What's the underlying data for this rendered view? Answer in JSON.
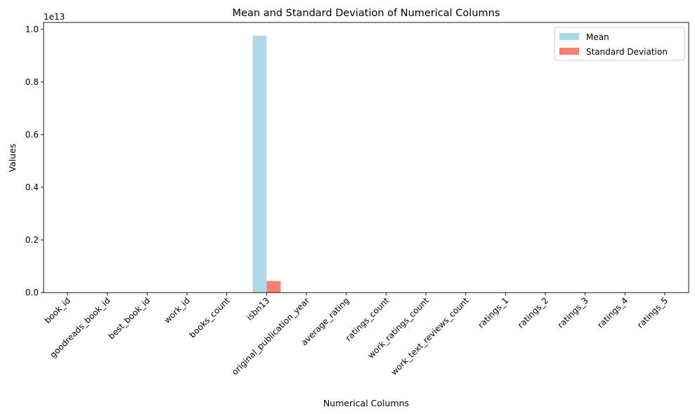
{
  "chart_data": {
    "type": "bar",
    "title": "Mean and Standard Deviation of Numerical Columns",
    "xlabel": "Numerical Columns",
    "ylabel": "Values",
    "y_offset_label": "1e13",
    "ylim": [
      0,
      10260000000000.0
    ],
    "yticks": [
      0,
      2000000000000.0,
      4000000000000.0,
      6000000000000.0,
      8000000000000.0,
      10000000000000.0
    ],
    "ytick_labels": [
      "0.0",
      "0.2",
      "0.4",
      "0.6",
      "0.8",
      "1.0"
    ],
    "legend_position": "top-right",
    "categories": [
      "book_id",
      "goodreads_book_id",
      "best_book_id",
      "work_id",
      "books_count",
      "isbn13",
      "original_publication_year",
      "average_rating",
      "ratings_count",
      "work_ratings_count",
      "work_text_reviews_count",
      "ratings_1",
      "ratings_2",
      "ratings_3",
      "ratings_4",
      "ratings_5"
    ],
    "series": [
      {
        "name": "Mean",
        "color": "#add8e6",
        "values": [
          5000.5,
          5264696.5,
          5471213.6,
          8646183.4,
          75.7,
          9755000000000.0,
          1981.99,
          4.0,
          54001.2,
          59687.3,
          2919.96,
          1345.0,
          3110.9,
          11475.9,
          19965.7,
          23789.8
        ]
      },
      {
        "name": "Standard Deviation",
        "color": "#fa8072",
        "values": [
          2886.9,
          7575461.9,
          7827329.9,
          11751061.0,
          170.5,
          443000000000.0,
          152.58,
          0.25,
          157370.0,
          167803.8,
          6124.4,
          6635.6,
          9717.1,
          28546.4,
          51447.4,
          79768.9
        ]
      }
    ]
  }
}
